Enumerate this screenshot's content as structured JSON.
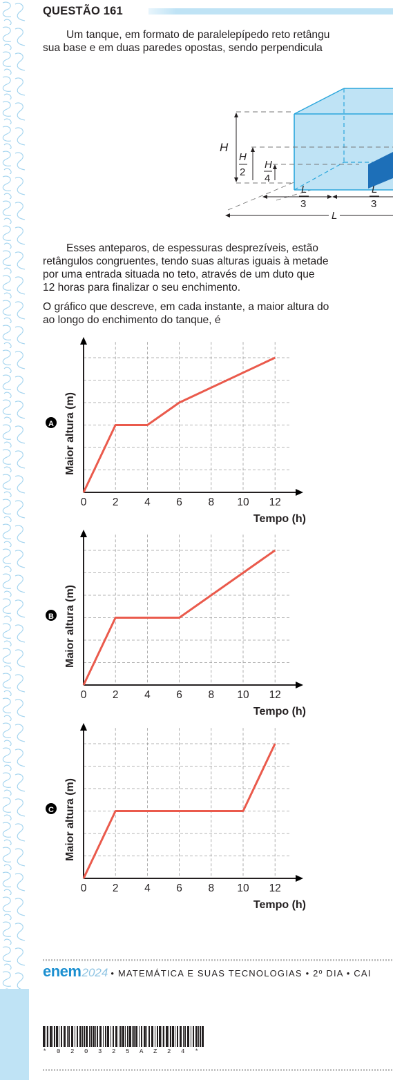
{
  "question": {
    "title": "QUESTÃO 161",
    "paragraph1": [
      "Um tanque, em formato de paralelepípedo reto retângu",
      "sua base e em duas paredes opostas, sendo perpendicula"
    ],
    "paragraph2": [
      "Esses anteparos, de espessuras desprezíveis, estão",
      "retângulos congruentes, tendo suas alturas iguais à metade",
      "por uma entrada situada no teto, através de um duto que",
      "12 horas para finalizar o seu enchimento."
    ],
    "paragraph3": [
      "O gráfico que descreve, em cada instante, a maior altura do",
      "ao longo do enchimento do tanque, é"
    ]
  },
  "figure": {
    "label_H": "H",
    "label_H2_num": "H",
    "label_H2_den": "2",
    "label_H4_num": "H",
    "label_H4_den": "4",
    "label_L3_num": "L",
    "label_L3_den": "3",
    "label_L": "L",
    "colors": {
      "tank": "#bfe3f5",
      "edge": "#2aa6dc",
      "divider": "#1d6fb8"
    }
  },
  "options": [
    {
      "letter": "A",
      "ylabel": "Maior altura (m)",
      "xlabel": "Tempo (h)"
    },
    {
      "letter": "B",
      "ylabel": "Maior altura (m)",
      "xlabel": "Tempo (h)"
    },
    {
      "letter": "C",
      "ylabel": "Maior altura (m)",
      "xlabel": "Tempo (h)"
    }
  ],
  "chart_data": [
    {
      "type": "line",
      "option": "A",
      "title": "",
      "xlabel": "Tempo (h)",
      "ylabel": "Maior altura (m)",
      "x_ticks": [
        "0",
        "2",
        "4",
        "6",
        "8",
        "10",
        "12"
      ],
      "xlim": [
        0,
        13
      ],
      "ylim": [
        0,
        6.5
      ],
      "grid": true,
      "series": [
        {
          "x": [
            0,
            2,
            4,
            6,
            12
          ],
          "y": [
            0,
            3,
            3,
            4,
            6
          ]
        }
      ]
    },
    {
      "type": "line",
      "option": "B",
      "title": "",
      "xlabel": "Tempo (h)",
      "ylabel": "Maior altura (m)",
      "x_ticks": [
        "0",
        "2",
        "4",
        "6",
        "8",
        "10",
        "12"
      ],
      "xlim": [
        0,
        13
      ],
      "ylim": [
        0,
        6.5
      ],
      "grid": true,
      "series": [
        {
          "x": [
            0,
            2,
            6,
            12
          ],
          "y": [
            0,
            3,
            3,
            6
          ]
        }
      ]
    },
    {
      "type": "line",
      "option": "C",
      "title": "",
      "xlabel": "Tempo (h)",
      "ylabel": "Maior altura (m)",
      "x_ticks": [
        "0",
        "2",
        "4",
        "6",
        "8",
        "10",
        "12"
      ],
      "xlim": [
        0,
        13
      ],
      "ylim": [
        0,
        6.5
      ],
      "grid": true,
      "series": [
        {
          "x": [
            0,
            2,
            10,
            12
          ],
          "y": [
            0,
            3,
            3,
            6
          ]
        }
      ]
    }
  ],
  "footer": {
    "logo": "enem",
    "year": "2024",
    "text": "• MATEMÁTICA E SUAS TECNOLOGIAS • 2º DIA • CAI",
    "barcode_digits": "* 0 2 0 3 2 5 A Z 2 4 *"
  }
}
